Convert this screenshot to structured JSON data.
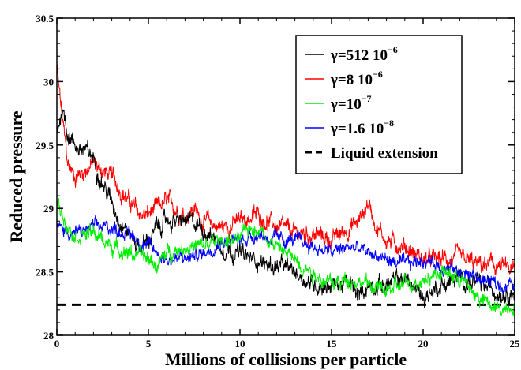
{
  "chart_data": {
    "type": "line",
    "title": "",
    "xlabel": "Millions of collisions per particle",
    "ylabel": "Reduced pressure",
    "xlim": [
      0,
      25
    ],
    "ylim": [
      28,
      30.5
    ],
    "x_ticks": [
      "0",
      "5",
      "10",
      "15",
      "20",
      "25"
    ],
    "y_ticks": [
      "28",
      "28.5",
      "29",
      "29.5",
      "30",
      "30.5"
    ],
    "grid": false,
    "legend_position": "top-right",
    "series": [
      {
        "name": "γ=512 10",
        "name_exponent": "−6",
        "color": "#000000",
        "noise": 0.07,
        "points": [
          [
            0,
            29.6
          ],
          [
            0.3,
            29.8
          ],
          [
            0.6,
            29.6
          ],
          [
            1,
            29.5
          ],
          [
            1.5,
            29.45
          ],
          [
            2,
            29.4
          ],
          [
            2.5,
            29.2
          ],
          [
            3,
            29.05
          ],
          [
            3.5,
            28.9
          ],
          [
            4,
            28.8
          ],
          [
            4.5,
            28.7
          ],
          [
            5,
            28.75
          ],
          [
            5.5,
            28.85
          ],
          [
            6,
            28.9
          ],
          [
            7,
            28.9
          ],
          [
            8,
            28.85
          ],
          [
            9,
            28.7
          ],
          [
            10,
            28.65
          ],
          [
            10.5,
            28.6
          ],
          [
            11,
            28.6
          ],
          [
            11.5,
            28.55
          ],
          [
            12,
            28.55
          ],
          [
            13,
            28.5
          ],
          [
            14,
            28.4
          ],
          [
            15,
            28.4
          ],
          [
            16,
            28.4
          ],
          [
            16.5,
            28.3
          ],
          [
            17,
            28.4
          ],
          [
            18,
            28.4
          ],
          [
            19,
            28.45
          ],
          [
            20,
            28.3
          ],
          [
            21,
            28.4
          ],
          [
            22,
            28.45
          ],
          [
            23,
            28.4
          ],
          [
            24,
            28.35
          ],
          [
            25,
            28.35
          ]
        ]
      },
      {
        "name": "γ=8 10",
        "name_exponent": "−6",
        "color": "#ff0000",
        "noise": 0.07,
        "points": [
          [
            0,
            30.1
          ],
          [
            0.3,
            29.7
          ],
          [
            0.6,
            29.35
          ],
          [
            1,
            29.25
          ],
          [
            1.5,
            29.3
          ],
          [
            2,
            29.35
          ],
          [
            2.5,
            29.3
          ],
          [
            3,
            29.25
          ],
          [
            3.5,
            29.15
          ],
          [
            4,
            29.05
          ],
          [
            4.5,
            28.95
          ],
          [
            5,
            28.95
          ],
          [
            5.5,
            29.0
          ],
          [
            6,
            29.05
          ],
          [
            6.5,
            29.0
          ],
          [
            7,
            28.95
          ],
          [
            7.5,
            29.0
          ],
          [
            8,
            28.9
          ],
          [
            9,
            28.85
          ],
          [
            10,
            28.9
          ],
          [
            11,
            28.95
          ],
          [
            12,
            28.85
          ],
          [
            13,
            28.8
          ],
          [
            14,
            28.8
          ],
          [
            15,
            28.75
          ],
          [
            16,
            28.85
          ],
          [
            16.5,
            28.9
          ],
          [
            17,
            29.05
          ],
          [
            17.5,
            28.85
          ],
          [
            18,
            28.75
          ],
          [
            19,
            28.7
          ],
          [
            20,
            28.6
          ],
          [
            21,
            28.6
          ],
          [
            22,
            28.6
          ],
          [
            23,
            28.55
          ],
          [
            24,
            28.55
          ],
          [
            25,
            28.5
          ]
        ]
      },
      {
        "name": "γ=10",
        "name_exponent": "−7",
        "color": "#00ee00",
        "noise": 0.06,
        "points": [
          [
            0,
            29.05
          ],
          [
            0.5,
            28.9
          ],
          [
            1,
            28.8
          ],
          [
            2,
            28.8
          ],
          [
            3,
            28.7
          ],
          [
            4,
            28.65
          ],
          [
            5,
            28.6
          ],
          [
            5.5,
            28.55
          ],
          [
            6,
            28.65
          ],
          [
            7,
            28.7
          ],
          [
            8,
            28.7
          ],
          [
            9,
            28.75
          ],
          [
            10,
            28.75
          ],
          [
            10.5,
            28.85
          ],
          [
            11,
            28.85
          ],
          [
            12,
            28.7
          ],
          [
            13,
            28.6
          ],
          [
            14,
            28.5
          ],
          [
            15,
            28.4
          ],
          [
            16,
            28.45
          ],
          [
            17,
            28.4
          ],
          [
            18,
            28.35
          ],
          [
            19,
            28.4
          ],
          [
            20,
            28.45
          ],
          [
            21,
            28.5
          ],
          [
            22,
            28.45
          ],
          [
            23,
            28.3
          ],
          [
            24,
            28.2
          ],
          [
            25,
            28.25
          ]
        ]
      },
      {
        "name": "γ=1.6 10",
        "name_exponent": "−8",
        "color": "#0000ff",
        "noise": 0.055,
        "points": [
          [
            0,
            28.85
          ],
          [
            1,
            28.8
          ],
          [
            2,
            28.85
          ],
          [
            3,
            28.85
          ],
          [
            4,
            28.8
          ],
          [
            5,
            28.7
          ],
          [
            6,
            28.6
          ],
          [
            7,
            28.6
          ],
          [
            8,
            28.65
          ],
          [
            9,
            28.75
          ],
          [
            10,
            28.75
          ],
          [
            11,
            28.8
          ],
          [
            12,
            28.75
          ],
          [
            13,
            28.75
          ],
          [
            14,
            28.7
          ],
          [
            15,
            28.65
          ],
          [
            16,
            28.7
          ],
          [
            17,
            28.65
          ],
          [
            18,
            28.6
          ],
          [
            19,
            28.55
          ],
          [
            20,
            28.6
          ],
          [
            21,
            28.55
          ],
          [
            22,
            28.5
          ],
          [
            23,
            28.45
          ],
          [
            24,
            28.4
          ],
          [
            25,
            28.4
          ]
        ]
      },
      {
        "name": "Liquid extension",
        "color": "#000000",
        "dashed": true,
        "points": [
          [
            0,
            28.24
          ],
          [
            25,
            28.24
          ]
        ]
      }
    ]
  }
}
